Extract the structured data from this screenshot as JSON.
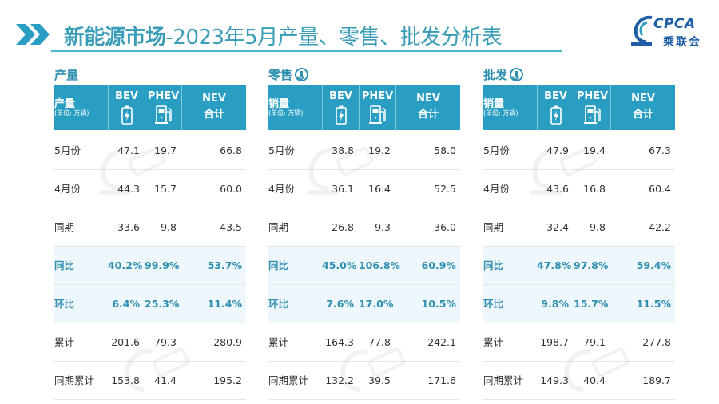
{
  "header": {
    "title_bold": "新能源市场",
    "title_rest": "-2023年5月产量、零售、批发分析表",
    "logo_text": "CPCA",
    "logo_sub": "乘联会"
  },
  "colors": {
    "accent": "#2a9ec2",
    "title": "#3a9db8",
    "highlight_bg": "#eef7fb",
    "logo": "#1e5ea8"
  },
  "panels": [
    {
      "title": "产量",
      "has_down_icon": false,
      "head": {
        "metric": "产量",
        "unit": "(单位: 万辆)",
        "bev": "BEV",
        "phev": "PHEV",
        "nev1": "NEV",
        "nev2": "合计"
      },
      "rows": [
        {
          "label": "5月份",
          "bev": "47.1",
          "phev": "19.7",
          "nev": "66.8",
          "highlight": false
        },
        {
          "label": "4月份",
          "bev": "44.3",
          "phev": "15.7",
          "nev": "60.0",
          "highlight": false
        },
        {
          "label": "同期",
          "bev": "33.6",
          "phev": "9.8",
          "nev": "43.5",
          "highlight": false
        },
        {
          "label": "同比",
          "bev": "40.2%",
          "phev": "99.9%",
          "nev": "53.7%",
          "highlight": true
        },
        {
          "label": "环比",
          "bev": "6.4%",
          "phev": "25.3%",
          "nev": "11.4%",
          "highlight": true
        },
        {
          "label": "累计",
          "bev": "201.6",
          "phev": "79.3",
          "nev": "280.9",
          "highlight": false
        },
        {
          "label": "同期累计",
          "bev": "153.8",
          "phev": "41.4",
          "nev": "195.2",
          "highlight": false
        }
      ]
    },
    {
      "title": "零售",
      "has_down_icon": true,
      "head": {
        "metric": "销量",
        "unit": "(单位: 万辆)",
        "bev": "BEV",
        "phev": "PHEV",
        "nev1": "NEV",
        "nev2": "合计"
      },
      "rows": [
        {
          "label": "5月份",
          "bev": "38.8",
          "phev": "19.2",
          "nev": "58.0",
          "highlight": false
        },
        {
          "label": "4月份",
          "bev": "36.1",
          "phev": "16.4",
          "nev": "52.5",
          "highlight": false
        },
        {
          "label": "同期",
          "bev": "26.8",
          "phev": "9.3",
          "nev": "36.0",
          "highlight": false
        },
        {
          "label": "同比",
          "bev": "45.0%",
          "phev": "106.8%",
          "nev": "60.9%",
          "highlight": true
        },
        {
          "label": "环比",
          "bev": "7.6%",
          "phev": "17.0%",
          "nev": "10.5%",
          "highlight": true
        },
        {
          "label": "累计",
          "bev": "164.3",
          "phev": "77.8",
          "nev": "242.1",
          "highlight": false
        },
        {
          "label": "同期累计",
          "bev": "132.2",
          "phev": "39.5",
          "nev": "171.6",
          "highlight": false
        }
      ]
    },
    {
      "title": "批发",
      "has_down_icon": true,
      "head": {
        "metric": "销量",
        "unit": "(单位: 万辆)",
        "bev": "BEV",
        "phev": "PHEV",
        "nev1": "NEV",
        "nev2": "合计"
      },
      "rows": [
        {
          "label": "5月份",
          "bev": "47.9",
          "phev": "19.4",
          "nev": "67.3",
          "highlight": false
        },
        {
          "label": "4月份",
          "bev": "43.6",
          "phev": "16.8",
          "nev": "60.4",
          "highlight": false
        },
        {
          "label": "同期",
          "bev": "32.4",
          "phev": "9.8",
          "nev": "42.2",
          "highlight": false
        },
        {
          "label": "同比",
          "bev": "47.8%",
          "phev": "97.8%",
          "nev": "59.4%",
          "highlight": true
        },
        {
          "label": "环比",
          "bev": "9.8%",
          "phev": "15.7%",
          "nev": "11.5%",
          "highlight": true
        },
        {
          "label": "累计",
          "bev": "198.7",
          "phev": "79.1",
          "nev": "277.8",
          "highlight": false
        },
        {
          "label": "同期累计",
          "bev": "149.3",
          "phev": "40.4",
          "nev": "189.7",
          "highlight": false
        }
      ]
    }
  ]
}
